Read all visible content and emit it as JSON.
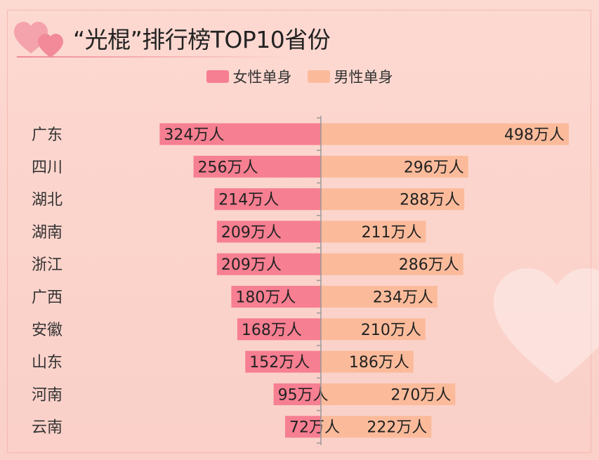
{
  "title": "“光棍”排行榜TOP10省份",
  "colors": {
    "female": "#f67f91",
    "male": "#fbbb9b",
    "axis": "#999999"
  },
  "legend": {
    "female": "女性单身",
    "male": "男性单身"
  },
  "chart_data": {
    "type": "bar",
    "orientation": "horizontal-diverging",
    "title": "“光棍”排行榜TOP10省份",
    "unit": "万人",
    "categories": [
      "广东",
      "四川",
      "湖北",
      "湖南",
      "浙江",
      "广西",
      "安徽",
      "山东",
      "河南",
      "云南"
    ],
    "series": [
      {
        "name": "女性单身",
        "values": [
          324,
          256,
          214,
          209,
          209,
          180,
          168,
          152,
          95,
          72
        ]
      },
      {
        "name": "男性单身",
        "values": [
          498,
          296,
          288,
          211,
          286,
          234,
          210,
          186,
          270,
          222
        ]
      }
    ],
    "xlim": [
      -500,
      500
    ],
    "legend_position": "top-center",
    "grid": false
  }
}
